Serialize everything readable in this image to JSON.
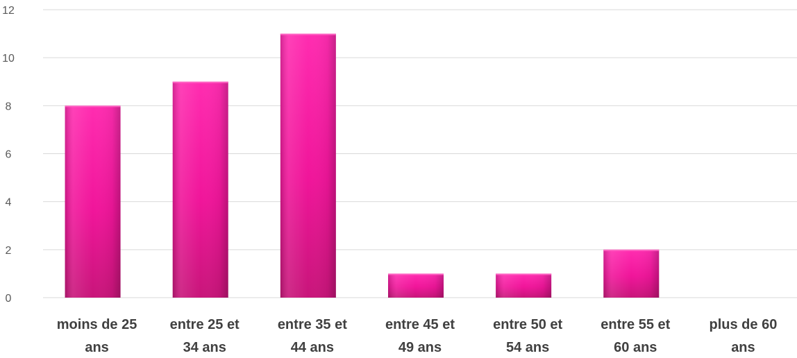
{
  "chart_data": {
    "type": "bar",
    "categories": [
      [
        "moins de 25",
        "ans"
      ],
      [
        "entre 25 et",
        "34 ans"
      ],
      [
        "entre 35 et",
        "44 ans"
      ],
      [
        "entre 45 et",
        "49 ans"
      ],
      [
        "entre 50 et",
        "54 ans"
      ],
      [
        "entre 55 et",
        "60 ans"
      ],
      [
        "plus de 60",
        "ans"
      ]
    ],
    "values": [
      8,
      9,
      11,
      1,
      1,
      2,
      0
    ],
    "ylim": [
      0,
      12
    ],
    "yticks": [
      "0",
      "2",
      "4",
      "6",
      "8",
      "10",
      "12"
    ],
    "grid": true,
    "colors": {
      "bar": "#ff1aa3",
      "bar_dark": "#c8157a",
      "bar_light": "#ff66c4",
      "grid": "#d9d9d9"
    }
  }
}
